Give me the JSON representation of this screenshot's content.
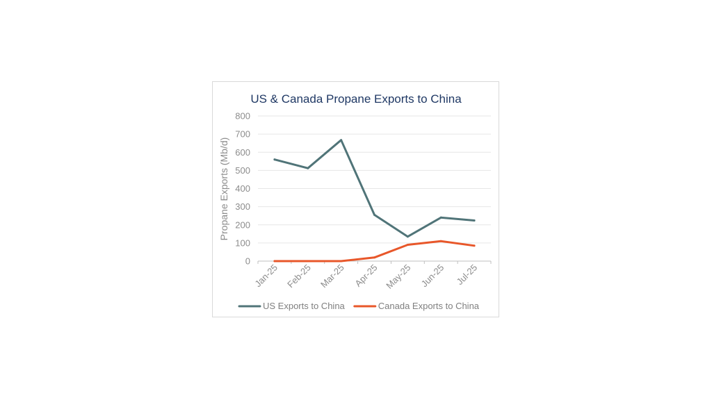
{
  "chart_data": {
    "type": "line",
    "title": "US & Canada Propane Exports to China",
    "xlabel": "",
    "ylabel": "Propane Exports (Mb/d)",
    "categories": [
      "Jan-25",
      "Feb-25",
      "Mar-25",
      "Apr-25",
      "May-25",
      "Jun-25",
      "Jul-25"
    ],
    "ylim": [
      0,
      800
    ],
    "yticks": [
      0,
      100,
      200,
      300,
      400,
      500,
      600,
      700,
      800
    ],
    "grid": true,
    "legend_position": "bottom",
    "series": [
      {
        "name": "US Exports to China",
        "color": "#507478",
        "values": [
          560,
          512,
          667,
          255,
          135,
          240,
          224
        ]
      },
      {
        "name": "Canada Exports to China",
        "color": "#e8572a",
        "values": [
          0,
          0,
          0,
          20,
          90,
          110,
          85
        ]
      }
    ]
  }
}
